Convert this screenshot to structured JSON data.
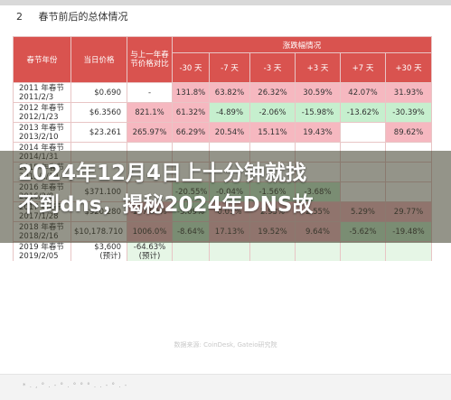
{
  "section": {
    "number": "2",
    "title": "春节前后的总体情况"
  },
  "table": {
    "group_header": "涨跌幅情况",
    "headers": [
      "春节年份",
      "当日价格",
      "与上一年春节价格对比",
      "-30 天",
      "-7 天",
      "-3 天",
      "+3 天",
      "+7 天",
      "+30 天"
    ],
    "rows": [
      {
        "year": [
          "2011 年春节",
          "2011/2/3"
        ],
        "price": "$0.690",
        "cells": [
          "-",
          "131.8%",
          "63.82%",
          "26.32%",
          "30.59%",
          "42.07%",
          "31.93%"
        ]
      },
      {
        "year": [
          "2012 年春节",
          "2012/1/23"
        ],
        "price": "$6.3560",
        "cells": [
          "821.1%",
          "61.32%",
          "-4.89%",
          "-2.06%",
          "-15.98%",
          "-13.62%",
          "-30.39%"
        ]
      },
      {
        "year": [
          "2013 年春节",
          "2013/2/10"
        ],
        "price": "$23.261",
        "cells": [
          "265.97%",
          "66.29%",
          "20.54%",
          "15.11%",
          "19.43%",
          "",
          "89.62%"
        ]
      },
      {
        "year": [
          "2014 年春节",
          "2014/1/31"
        ],
        "price": "",
        "cells": [
          "",
          "",
          "",
          "",
          "",
          "",
          ""
        ]
      },
      {
        "year": [
          "2015 年春节",
          "2015/2/19"
        ],
        "price": "",
        "cells": [
          "",
          "",
          "",
          "",
          "",
          "",
          ""
        ]
      },
      {
        "year": [
          "2016 年春节",
          "2016/2/8"
        ],
        "price": "$371.100",
        "cells": [
          "",
          "-20.55%",
          "-0.04%",
          "-1.56%",
          "-3.68%",
          "",
          ""
        ]
      },
      {
        "year": [
          "2017 年春节",
          "2017/1/28"
        ],
        "price": "$920.280",
        "cells": [
          "147.99%",
          "-5.09%",
          "0.03%",
          "2.93%",
          "2.55%",
          "5.29%",
          "29.77%"
        ]
      },
      {
        "year": [
          "2018 年春节",
          "2018/2/16"
        ],
        "price": "$10,178.710",
        "cells": [
          "1006.0%",
          "-8.64%",
          "17.13%",
          "19.52%",
          "9.64%",
          "-5.62%",
          "-19.48%"
        ]
      },
      {
        "year": [
          "2019 年春节",
          "2019/2/05"
        ],
        "price": "$3,600",
        "price_note": "(预计)",
        "cells": [
          "-64.63%",
          "",
          "",
          "",
          "",
          "",
          ""
        ],
        "cell_note": "(预计)"
      }
    ]
  },
  "watermark": "数据来源: CoinDesk, Gateio研究院",
  "footer": "* . , ° . - ° . ° ° ° . . - ° . -",
  "headline": "2024年12月4日上十分钟就找\n不到dns，揭秘2024年DNS故"
}
